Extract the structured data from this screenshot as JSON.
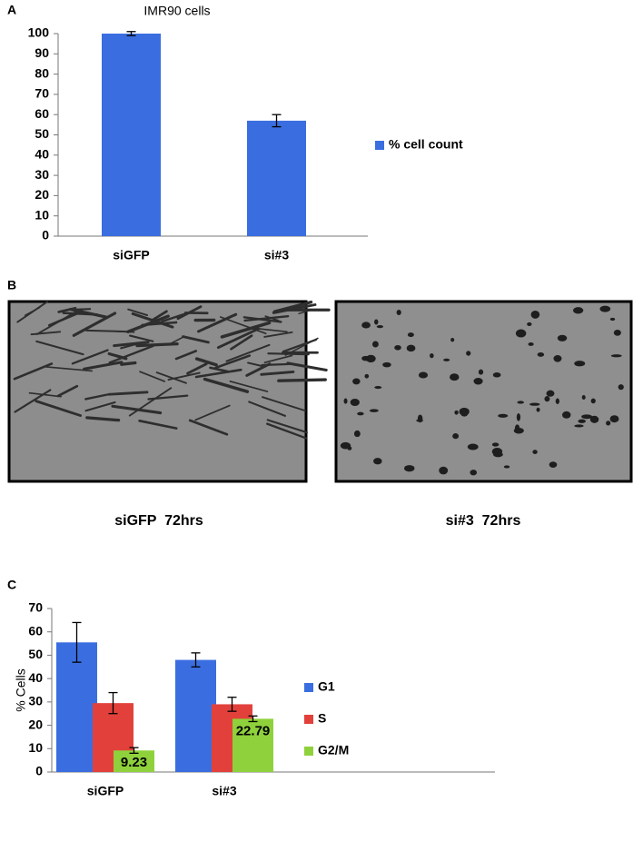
{
  "panels": {
    "letters": [
      "A",
      "B",
      "C"
    ],
    "captions": [
      "siGFP  72hrs",
      "si#3  72hrs"
    ]
  },
  "chart_data": [
    {
      "type": "bar",
      "title": "IMR90 cells",
      "categories": [
        "siGFP",
        "si#3"
      ],
      "series": [
        {
          "name": "% cell count",
          "color": "#3a6ee0",
          "values": [
            100,
            57
          ],
          "errors": [
            1,
            3
          ]
        }
      ],
      "ylim": [
        0,
        100
      ],
      "yticks": [
        0,
        10,
        20,
        30,
        40,
        50,
        60,
        70,
        80,
        90,
        100
      ],
      "grid": false
    },
    {
      "type": "bar",
      "y_label": "% Cells",
      "categories": [
        "siGFP",
        "si#3"
      ],
      "series": [
        {
          "name": "G1",
          "color": "#3a6ee0",
          "values": [
            55.5,
            48
          ],
          "errors": [
            8.5,
            3
          ]
        },
        {
          "name": "S",
          "color": "#e2413b",
          "values": [
            29.5,
            29
          ],
          "errors": [
            4.5,
            3
          ]
        },
        {
          "name": "G2/M",
          "color": "#8fd13c",
          "values": [
            9.23,
            22.79
          ],
          "errors": [
            1.2,
            1.2
          ],
          "show_labels": true
        }
      ],
      "ylim": [
        0,
        70
      ],
      "yticks": [
        0,
        10,
        20,
        30,
        40,
        50,
        60,
        70
      ],
      "grid": false
    }
  ]
}
